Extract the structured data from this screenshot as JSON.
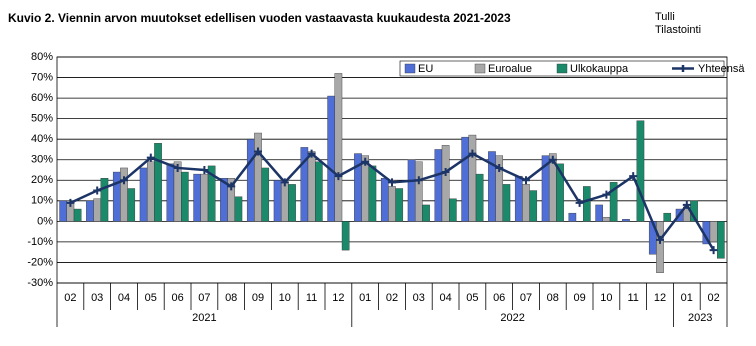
{
  "chart_data": {
    "type": "bar",
    "title": "Kuvio 2. Viennin arvon muutokset  edellisen vuoden vastaavasta  kuukaudesta 2021-2023",
    "source": [
      "Tulli",
      "Tilastointi"
    ],
    "category_groups": [
      {
        "label": "2021",
        "categories": [
          "02",
          "03",
          "04",
          "05",
          "06",
          "07",
          "08",
          "09",
          "10",
          "11",
          "12"
        ]
      },
      {
        "label": "2022",
        "categories": [
          "01",
          "02",
          "03",
          "04",
          "05",
          "06",
          "07",
          "08",
          "09",
          "10",
          "11",
          "12"
        ]
      },
      {
        "label": "2023",
        "categories": [
          "01",
          "02"
        ]
      }
    ],
    "series": [
      {
        "name": "EU",
        "type": "bar",
        "color": "#4f6fd6",
        "values": [
          10,
          10,
          24,
          26,
          28,
          23,
          21,
          40,
          20,
          36,
          61,
          33,
          21,
          30,
          35,
          41,
          34,
          22,
          32,
          4,
          8,
          1,
          -16,
          6,
          -11
        ]
      },
      {
        "name": "Euroalue",
        "type": "bar",
        "color": "#a8a8a8",
        "values": [
          10,
          11,
          26,
          29,
          29,
          23,
          21,
          43,
          19,
          34,
          72,
          32,
          17,
          29,
          37,
          42,
          32,
          18,
          33,
          0,
          2,
          0,
          -25,
          7,
          -10
        ]
      },
      {
        "name": "Ulkokauppa",
        "type": "bar",
        "color": "#1b8a6b",
        "values": [
          6,
          21,
          16,
          38,
          24,
          27,
          12,
          26,
          18,
          29,
          -14,
          27,
          16,
          8,
          11,
          23,
          18,
          15,
          28,
          17,
          19,
          49,
          4,
          10,
          -18
        ]
      },
      {
        "name": "Yhteensä",
        "type": "line",
        "color": "#1c3466",
        "values": [
          9,
          15,
          20,
          31,
          26,
          25,
          17,
          34,
          19,
          33,
          22,
          29,
          19,
          20,
          24,
          33,
          26,
          20,
          30,
          9,
          13,
          22,
          -9,
          8,
          -14
        ]
      }
    ],
    "ylim": [
      -30,
      80
    ],
    "yticks": [
      {
        "value": -30,
        "label": "-30%"
      },
      {
        "value": -20,
        "label": "-20%"
      },
      {
        "value": -10,
        "label": "-10%"
      },
      {
        "value": 0,
        "label": "0%"
      },
      {
        "value": 10,
        "label": "10%"
      },
      {
        "value": 20,
        "label": "20%"
      },
      {
        "value": 30,
        "label": "30%"
      },
      {
        "value": 40,
        "label": "40%"
      },
      {
        "value": 50,
        "label": "50%"
      },
      {
        "value": 60,
        "label": "60%"
      },
      {
        "value": 70,
        "label": "70%"
      },
      {
        "value": 80,
        "label": "80%"
      }
    ],
    "grid": true
  }
}
